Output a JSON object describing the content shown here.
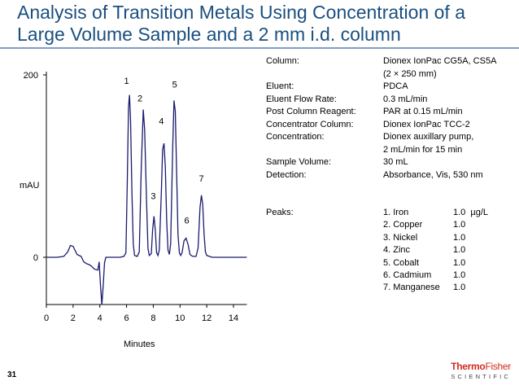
{
  "slide": {
    "title": "Analysis of Transition Metals Using Concentration of a Large Volume Sample and a 2 mm i.d. column",
    "page_number": "31",
    "logo": {
      "line1_a": "Thermo",
      "line1_b": "Fisher",
      "line2": "SCIENTIFIC",
      "color": "#d22b1f"
    }
  },
  "chart_data": {
    "type": "line",
    "xlabel": "Minutes",
    "ylabel": "mAU",
    "x_ticks": [
      "0",
      "2",
      "4",
      "6",
      "8",
      "10",
      "12",
      "14"
    ],
    "y_tick_labels": [
      {
        "value": 200,
        "label": "200"
      },
      {
        "value": 0,
        "label": "0"
      }
    ],
    "xlim": [
      0,
      15
    ],
    "ylim": [
      -70,
      215
    ],
    "grid": false,
    "color": "#1a1a6e",
    "series": [
      {
        "points": [
          [
            0.0,
            0
          ],
          [
            0.8,
            0
          ],
          [
            1.3,
            1
          ],
          [
            1.6,
            6
          ],
          [
            1.8,
            13
          ],
          [
            2.0,
            12
          ],
          [
            2.3,
            3
          ],
          [
            2.6,
            1
          ],
          [
            2.8,
            -5
          ],
          [
            3.0,
            -7
          ],
          [
            3.2,
            -8
          ],
          [
            3.4,
            -10
          ],
          [
            3.6,
            -13
          ],
          [
            3.85,
            -14
          ],
          [
            3.95,
            -5
          ],
          [
            4.05,
            -30
          ],
          [
            4.15,
            -52
          ],
          [
            4.25,
            -32
          ],
          [
            4.35,
            -6
          ],
          [
            4.45,
            0
          ],
          [
            5.0,
            0
          ],
          [
            5.5,
            0
          ],
          [
            5.8,
            1
          ],
          [
            5.95,
            5
          ],
          [
            6.05,
            80
          ],
          [
            6.15,
            165
          ],
          [
            6.22,
            178
          ],
          [
            6.3,
            150
          ],
          [
            6.4,
            70
          ],
          [
            6.5,
            15
          ],
          [
            6.6,
            2
          ],
          [
            6.8,
            1
          ],
          [
            6.95,
            6
          ],
          [
            7.1,
            100
          ],
          [
            7.25,
            162
          ],
          [
            7.35,
            140
          ],
          [
            7.5,
            60
          ],
          [
            7.6,
            10
          ],
          [
            7.7,
            2
          ],
          [
            7.85,
            4
          ],
          [
            7.95,
            30
          ],
          [
            8.05,
            45
          ],
          [
            8.15,
            30
          ],
          [
            8.25,
            5
          ],
          [
            8.35,
            2
          ],
          [
            8.45,
            8
          ],
          [
            8.6,
            70
          ],
          [
            8.7,
            118
          ],
          [
            8.8,
            125
          ],
          [
            8.9,
            100
          ],
          [
            9.0,
            40
          ],
          [
            9.1,
            8
          ],
          [
            9.2,
            3
          ],
          [
            9.3,
            15
          ],
          [
            9.45,
            120
          ],
          [
            9.55,
            172
          ],
          [
            9.65,
            160
          ],
          [
            9.75,
            90
          ],
          [
            9.85,
            25
          ],
          [
            9.95,
            5
          ],
          [
            10.05,
            2
          ],
          [
            10.15,
            5
          ],
          [
            10.3,
            18
          ],
          [
            10.45,
            21
          ],
          [
            10.6,
            14
          ],
          [
            10.75,
            3
          ],
          [
            10.95,
            1
          ],
          [
            11.2,
            1
          ],
          [
            11.35,
            10
          ],
          [
            11.5,
            55
          ],
          [
            11.6,
            68
          ],
          [
            11.7,
            58
          ],
          [
            11.8,
            25
          ],
          [
            11.9,
            6
          ],
          [
            12.0,
            2
          ],
          [
            12.4,
            0
          ],
          [
            15.0,
            0
          ]
        ]
      }
    ],
    "peak_labels": [
      {
        "x": 6.0,
        "y": 190,
        "text": "1"
      },
      {
        "x": 7.0,
        "y": 171,
        "text": "2"
      },
      {
        "x": 8.0,
        "y": 64,
        "text": "3"
      },
      {
        "x": 8.6,
        "y": 146,
        "text": "4"
      },
      {
        "x": 9.6,
        "y": 186,
        "text": "5"
      },
      {
        "x": 10.5,
        "y": 37,
        "text": "6"
      },
      {
        "x": 11.6,
        "y": 83,
        "text": "7"
      }
    ]
  },
  "conditions": [
    {
      "key": "Column:",
      "value": "Dionex IonPac CG5A, CS5A"
    },
    {
      "key": "",
      "value": "(2 × 250 mm)"
    },
    {
      "key": "Eluent:",
      "value": "PDCA"
    },
    {
      "key": "Eluent Flow Rate:",
      "value": "0.3 mL/min"
    },
    {
      "key": "Post Column Reagent:",
      "value": "PAR at 0.15 mL/min"
    },
    {
      "key": "Concentrator Column:",
      "value": "Dionex IonPac TCC-2"
    },
    {
      "key": "Concentration:",
      "value": "Dionex auxillary pump,"
    },
    {
      "key": "",
      "value": "2 mL/min for 15 min"
    },
    {
      "key": "Sample Volume:",
      "value": "30 mL"
    },
    {
      "key": "Detection:",
      "value": "Absorbance, Vis, 530 nm"
    }
  ],
  "peaks": {
    "label": "Peaks:",
    "unit": "µg/L",
    "items": [
      {
        "name": "1. Iron",
        "value": "1.0"
      },
      {
        "name": "2. Copper",
        "value": "1.0"
      },
      {
        "name": "3. Nickel",
        "value": "1.0"
      },
      {
        "name": "4. Zinc",
        "value": "1.0"
      },
      {
        "name": "5. Cobalt",
        "value": "1.0"
      },
      {
        "name": "6. Cadmium",
        "value": "1.0"
      },
      {
        "name": "7. Manganese",
        "value": "1.0"
      }
    ]
  }
}
